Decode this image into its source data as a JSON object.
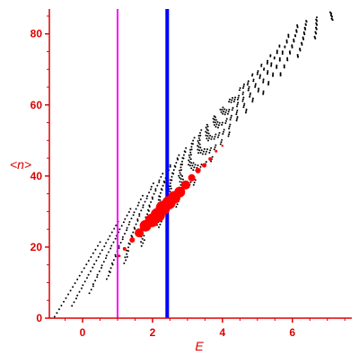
{
  "chart_data": {
    "type": "scatter",
    "title": "",
    "xlabel": "E",
    "ylabel": "<n>",
    "xlim": [
      -0.95,
      7.7
    ],
    "ylim": [
      0,
      87
    ],
    "xticks": [
      "0",
      "2",
      "4",
      "6"
    ],
    "xtick_values": [
      0,
      2,
      4,
      6
    ],
    "yticks": [
      "0",
      "20",
      "40",
      "60",
      "80"
    ],
    "ytick_values": [
      0,
      20,
      40,
      60,
      80
    ],
    "grid": false,
    "axis_color": "#dd0000",
    "vertical_lines": [
      {
        "x": 1.0,
        "color": "#ff00ff"
      },
      {
        "x": 2.42,
        "color": "#0000ff"
      }
    ],
    "series": [
      {
        "marker_color": "#000000",
        "description_points": "families of small black dots; family k starts near (-0.8 + 0.06k, ~k) and fans upward with slope ~10.5 per unit E",
        "families": 50,
        "x_start": -0.8,
        "x_end": 7.65,
        "slope": 10.5
      },
      {
        "marker_color": "#ff0000",
        "x": [
          1.05,
          1.2,
          1.42,
          1.62,
          1.8,
          1.98,
          2.15,
          2.3,
          2.47,
          2.62,
          2.78,
          2.95,
          3.12,
          3.3,
          3.48,
          3.65,
          3.82,
          4.0
        ],
        "y": [
          17.5,
          19.5,
          22.0,
          24.0,
          26.0,
          27.5,
          29.0,
          31.0,
          32.5,
          34.0,
          35.5,
          37.5,
          39.5,
          41.5,
          43.0,
          44.8,
          47.0,
          48.5
        ],
        "size": [
          1.5,
          2,
          3,
          5,
          6.5,
          7.5,
          8,
          8,
          7.5,
          7,
          6,
          5,
          4,
          3,
          2.5,
          2,
          1.5,
          1.2
        ]
      }
    ]
  }
}
